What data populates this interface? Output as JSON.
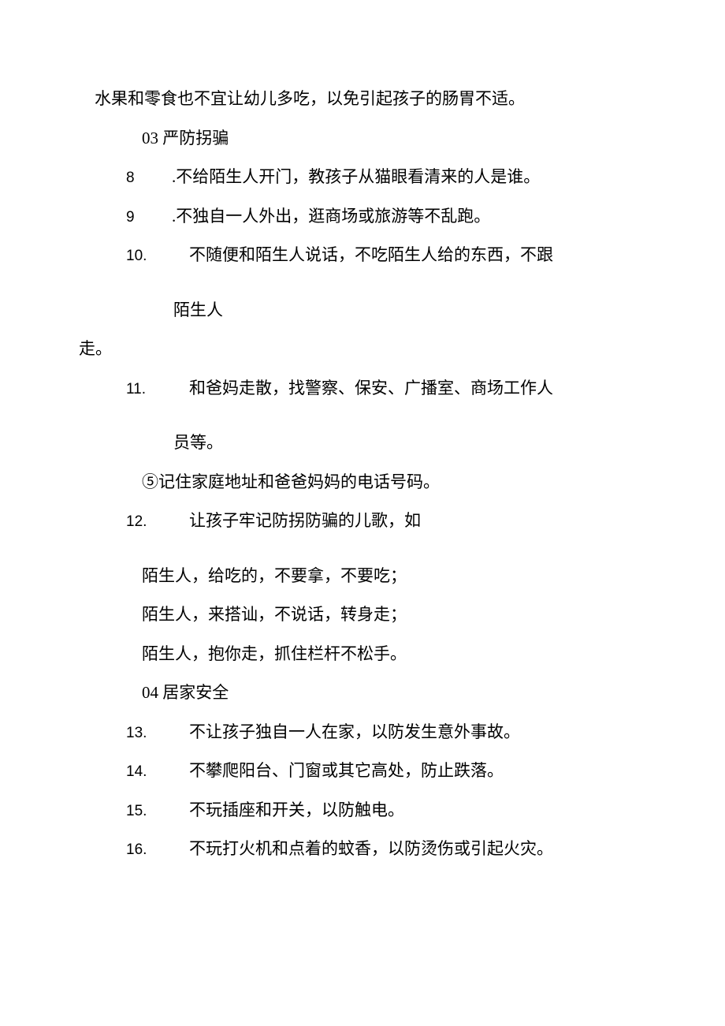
{
  "first_line": "水果和零食也不宜让幼儿多吃，以免引起孩子的肠胃不适。",
  "section03": "03 严防拐骗",
  "item8_num": "8",
  "item8_text": ".不给陌生人开门，教孩子从猫眼看清来的人是谁。",
  "item9_num": "9",
  "item9_text": ".不独自一人外出，逛商场或旅游等不乱跑。",
  "item10_num": "10.",
  "item10_text": "不随便和陌生人说话，不吃陌生人给的东西，不跟",
  "item10_cont": "陌生人",
  "item10_cont2": "走。",
  "item11_num": "11.",
  "item11_text": "和爸妈走散，找警察、保安、广播室、商场工作人",
  "item11_cont": "员等。",
  "circle5": "⑤记住家庭地址和爸爸妈妈的电话号码。",
  "item12_num": "12.",
  "item12_text": "让孩子牢记防拐防骗的儿歌，如",
  "poem1": "陌生人，给吃的，不要拿，不要吃；",
  "poem2": "陌生人，来搭讪，不说话，转身走；",
  "poem3": "陌生人，抱你走，抓住栏杆不松手。",
  "section04": "04 居家安全",
  "item13_num": "13.",
  "item13_text": "不让孩子独自一人在家，以防发生意外事故。",
  "item14_num": "14.",
  "item14_text": "不攀爬阳台、门窗或其它高处，防止跌落。",
  "item15_num": "15.",
  "item15_text": "不玩插座和开关，以防触电。",
  "item16_num": "16.",
  "item16_text": "不玩打火机和点着的蚊香，以防烫伤或引起火灾。"
}
